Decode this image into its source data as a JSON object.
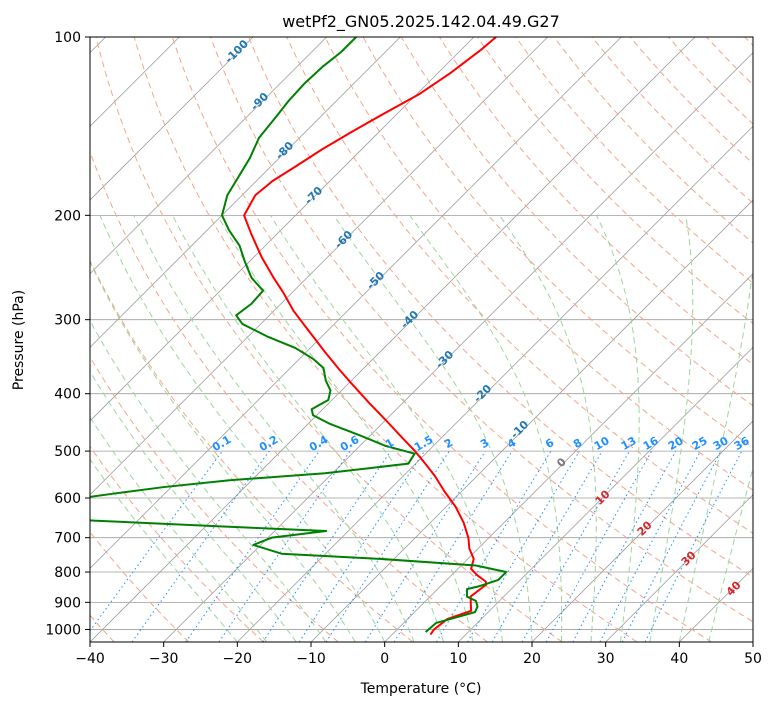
{
  "chart_data": {
    "type": "line",
    "title": "wetPf2_GN05.2025.142.04.49.G27",
    "xlabel": "Temperature (°C)",
    "ylabel": "Pressure (hPa)",
    "xlim": [
      -40,
      50
    ],
    "ylim": [
      1050,
      100
    ],
    "y_scale": "log",
    "skew": true,
    "x_ticks": [
      "−40",
      "−30",
      "−20",
      "−10",
      "0",
      "10",
      "20",
      "30",
      "40",
      "50"
    ],
    "y_ticks": [
      "100",
      "200",
      "300",
      "400",
      "500",
      "600",
      "700",
      "800",
      "900",
      "1000"
    ],
    "dry_adiabat_labels": [
      "-100",
      "-90",
      "-80",
      "-70",
      "-60",
      "-50",
      "-40",
      "-30",
      "-20",
      "-10"
    ],
    "mixing_ratio_labels": [
      "0.1",
      "0.2",
      "0.4",
      "0.6",
      "1",
      "1.5",
      "2",
      "3",
      "4",
      "6",
      "8",
      "10",
      "13",
      "16",
      "20",
      "25",
      "30",
      "36"
    ],
    "moist_adiabat_labels": [
      "0",
      "10",
      "20",
      "30",
      "40"
    ],
    "colors": {
      "temperature": "#ff0000",
      "dewpoint": "#008000",
      "isotherm": "#9e9e9e",
      "dry_adiabat": "#f4a58a",
      "moist_adiabat": "#9fd49f",
      "mixing_ratio": "#1e90ff"
    },
    "series": [
      {
        "key": "temperature",
        "points": [
          [
            1020,
            5.2
          ],
          [
            1000,
            5.0
          ],
          [
            960,
            5.4
          ],
          [
            930,
            7.5
          ],
          [
            910,
            6.7
          ],
          [
            880,
            5.5
          ],
          [
            855,
            5.8
          ],
          [
            840,
            6.0
          ],
          [
            830,
            5.5
          ],
          [
            810,
            3.5
          ],
          [
            790,
            1.8
          ],
          [
            760,
            0.8
          ],
          [
            730,
            -1.2
          ],
          [
            700,
            -2.8
          ],
          [
            660,
            -5.5
          ],
          [
            620,
            -8.8
          ],
          [
            585,
            -12.3
          ],
          [
            550,
            -15.8
          ],
          [
            520,
            -19.3
          ],
          [
            500,
            -21.8
          ],
          [
            475,
            -25.3
          ],
          [
            445,
            -29.7
          ],
          [
            415,
            -34.5
          ],
          [
            385,
            -39.5
          ],
          [
            365,
            -43.0
          ],
          [
            340,
            -47.5
          ],
          [
            310,
            -53.2
          ],
          [
            290,
            -57.3
          ],
          [
            270,
            -61.2
          ],
          [
            255,
            -64.5
          ],
          [
            235,
            -69.0
          ],
          [
            215,
            -73.5
          ],
          [
            200,
            -77.0
          ],
          [
            185,
            -78.2
          ],
          [
            175,
            -77.8
          ],
          [
            165,
            -76.6
          ],
          [
            155,
            -75.4
          ],
          [
            145,
            -73.8
          ],
          [
            135,
            -71.9
          ],
          [
            125,
            -69.7
          ],
          [
            115,
            -68.3
          ],
          [
            105,
            -67.3
          ],
          [
            100,
            -67.0
          ]
        ]
      },
      {
        "key": "dewpoint",
        "points": [
          [
            1010,
            4.2
          ],
          [
            995,
            4.3
          ],
          [
            975,
            4.4
          ],
          [
            958,
            6.0
          ],
          [
            935,
            8.2
          ],
          [
            915,
            7.8
          ],
          [
            895,
            6.8
          ],
          [
            880,
            5.0
          ],
          [
            855,
            4.0
          ],
          [
            845,
            5.3
          ],
          [
            825,
            7.0
          ],
          [
            800,
            7.0
          ],
          [
            780,
            2.0
          ],
          [
            760,
            -12.0
          ],
          [
            745,
            -26.0
          ],
          [
            720,
            -31.0
          ],
          [
            700,
            -29.5
          ],
          [
            682,
            -23.0
          ],
          [
            670,
            -38.0
          ],
          [
            655,
            -56.0
          ],
          [
            640,
            -69.5
          ],
          [
            630,
            -68.5
          ],
          [
            612,
            -65.0
          ],
          [
            590,
            -57.0
          ],
          [
            575,
            -51.0
          ],
          [
            560,
            -43.0
          ],
          [
            545,
            -31.0
          ],
          [
            525,
            -21.0
          ],
          [
            505,
            -21.5
          ],
          [
            490,
            -26.5
          ],
          [
            470,
            -31.5
          ],
          [
            450,
            -37.0
          ],
          [
            435,
            -40.5
          ],
          [
            425,
            -41.5
          ],
          [
            410,
            -40.5
          ],
          [
            395,
            -41.5
          ],
          [
            380,
            -43.5
          ],
          [
            362,
            -45.5
          ],
          [
            350,
            -48.0
          ],
          [
            335,
            -52.0
          ],
          [
            320,
            -57.5
          ],
          [
            305,
            -62.5
          ],
          [
            295,
            -64.5
          ],
          [
            282,
            -64.0
          ],
          [
            268,
            -64.2
          ],
          [
            255,
            -67.5
          ],
          [
            240,
            -70.5
          ],
          [
            225,
            -73.5
          ],
          [
            212,
            -77.0
          ],
          [
            200,
            -80.0
          ],
          [
            185,
            -82.0
          ],
          [
            172,
            -83.0
          ],
          [
            160,
            -84.0
          ],
          [
            148,
            -85.5
          ],
          [
            137,
            -86.0
          ],
          [
            128,
            -86.5
          ],
          [
            120,
            -86.7
          ],
          [
            112,
            -86.5
          ],
          [
            106,
            -86.0
          ],
          [
            100,
            -86.0
          ]
        ]
      }
    ]
  }
}
